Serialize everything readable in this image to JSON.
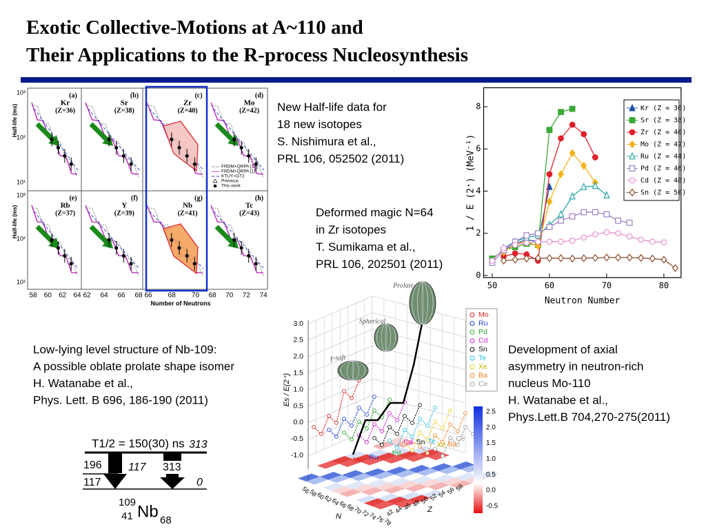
{
  "header": {
    "title_lines": [
      "Exotic Collective-Motions at A~110 and",
      "Their Applications to the R-process Nucleosynthesis"
    ]
  },
  "blocks": [
    {
      "lines": [
        "New Half-life data for",
        "18 new isotopes",
        "S. Nishimura et al.,",
        "PRL 106, 052502 (2011)"
      ]
    },
    {
      "lines": [
        "Deformed magic N=64",
        "in Zr isotopes",
        "T. Sumikama et al.,",
        "PRL 106, 202501 (2011)"
      ]
    },
    {
      "lines": [
        "Low-lying level structure of Nb-109:",
        "A possible oblate prolate shape isomer",
        "H. Watanabe et al.,",
        "Phys. Lett. B 696, 186-190 (2011)"
      ]
    },
    {
      "lines": [
        "Development of axial",
        "asymmetry in neutron-rich",
        "nucleus Mo-110",
        "H. Watanabe et al.,",
        "Phys.Lett.B 704,270-275(2011)"
      ]
    }
  ],
  "half_life": {
    "y_label": "Half-life (ms)",
    "x_label": "Number of Neutrons",
    "y_ticks": [
      "10³",
      "10²",
      "10¹"
    ],
    "panels": [
      {
        "letter": "(a)",
        "element": "Kr",
        "z": "(Z=36)"
      },
      {
        "letter": "(b)",
        "element": "Sr",
        "z": "(Z=38)"
      },
      {
        "letter": "(c)",
        "element": "Zr",
        "z": "(Z=40)"
      },
      {
        "letter": "(d)",
        "element": "Mo",
        "z": "(Z=42)"
      },
      {
        "letter": "(e)",
        "element": "Rb",
        "z": "(Z=37)"
      },
      {
        "letter": "(f)",
        "element": "Y",
        "z": "(Z=39)"
      },
      {
        "letter": "(g)",
        "element": "Nb",
        "z": "(Z=41)"
      },
      {
        "letter": "(h)",
        "element": "Tc",
        "z": "(Z=43)"
      }
    ],
    "x_ticks": [
      [
        58,
        60,
        62,
        64
      ],
      [
        62,
        64,
        66,
        68
      ],
      [
        66,
        68,
        70
      ],
      [
        68,
        70,
        72,
        74
      ]
    ],
    "legend": [
      "FRDM+QRPA [17]",
      "FRDM+QRPA [1]",
      "KTUY+GT2",
      "Previous",
      "This work"
    ]
  },
  "chart_data": {
    "type": "line",
    "x_label": "Neutron Number",
    "y_label": "1 / E (2⁺) (MeV⁻¹)",
    "xlim": [
      48.5,
      83
    ],
    "xticks": [
      50,
      60,
      70,
      80
    ],
    "ylim": [
      -0.1,
      8.9
    ],
    "yticks": [
      0,
      2,
      4,
      6,
      8
    ],
    "series": [
      {
        "name": "Kr (Z = 36)",
        "color": "#1f4fa8",
        "marker": "triangle",
        "x": [
          52,
          54,
          56,
          58,
          60
        ],
        "values": [
          1.2,
          1.5,
          1.7,
          1.6,
          4.2
        ]
      },
      {
        "name": "Sr (Z = 38)",
        "color": "#3aa935",
        "marker": "square",
        "x": [
          50,
          52,
          54,
          56,
          58,
          60,
          62,
          64
        ],
        "values": [
          0.8,
          1.2,
          1.35,
          1.5,
          1.45,
          6.9,
          7.75,
          7.9
        ]
      },
      {
        "name": "Zr (Z = 40)",
        "color": "#e0202a",
        "marker": "circle",
        "x": [
          52,
          54,
          56,
          58,
          60,
          62,
          64,
          66,
          68
        ],
        "values": [
          0.9,
          1.05,
          1.0,
          0.7,
          4.8,
          6.5,
          7.15,
          6.7,
          5.6
        ]
      },
      {
        "name": "Mo (Z = 42)",
        "color": "#f5b21b",
        "marker": "diamond",
        "x": [
          52,
          54,
          56,
          58,
          60,
          62,
          64,
          66,
          68
        ],
        "values": [
          1.1,
          1.5,
          1.6,
          1.4,
          3.5,
          4.8,
          5.8,
          5.2,
          4.4
        ]
      },
      {
        "name": "Ru (Z = 44)",
        "color": "#2aa6a6",
        "marker": "triangle-open",
        "x": [
          52,
          54,
          56,
          58,
          60,
          62,
          64,
          66,
          68,
          70
        ],
        "values": [
          1.3,
          1.6,
          1.8,
          1.9,
          2.4,
          2.9,
          3.75,
          4.2,
          4.25,
          3.8
        ]
      },
      {
        "name": "Pd (Z = 46)",
        "color": "#9b7fc2",
        "marker": "square-open",
        "x": [
          50,
          52,
          54,
          56,
          58,
          60,
          62,
          64,
          66,
          68,
          70,
          72,
          74
        ],
        "values": [
          0.6,
          1.2,
          1.6,
          1.9,
          2.0,
          2.3,
          2.6,
          2.8,
          3.0,
          3.0,
          2.9,
          2.6,
          2.5
        ]
      },
      {
        "name": "Cd (Z = 48)",
        "color": "#e88fcf",
        "marker": "circle-open",
        "x": [
          50,
          52,
          54,
          56,
          58,
          60,
          62,
          64,
          66,
          68,
          70,
          72,
          74,
          76,
          78,
          80
        ],
        "values": [
          0.7,
          1.3,
          1.45,
          1.55,
          1.6,
          1.6,
          1.6,
          1.65,
          1.8,
          1.95,
          2.05,
          2.0,
          1.85,
          1.7,
          1.6,
          1.57
        ]
      },
      {
        "name": "Sn (Z = 50)",
        "color": "#8a4a2a",
        "marker": "diamond-open",
        "x": [
          52,
          54,
          56,
          58,
          60,
          62,
          64,
          66,
          68,
          70,
          72,
          74,
          76,
          78,
          80,
          82
        ],
        "values": [
          0.7,
          0.75,
          0.8,
          0.82,
          0.82,
          0.82,
          0.8,
          0.82,
          0.83,
          0.85,
          0.85,
          0.85,
          0.83,
          0.8,
          0.75,
          0.35
        ]
      }
    ],
    "legend": "upper right"
  },
  "surface": {
    "y_label": "Es / E(2⁺)",
    "y_ticks": [
      "3.0",
      "2.5",
      "2.0",
      "1.5",
      "1.0",
      "0.5",
      "0.0",
      "-0.5",
      "-1.0"
    ],
    "shapes": [
      "Prolate",
      "Spherical",
      "γ-soft"
    ],
    "legend": [
      "Mo",
      "Ru",
      "Pd",
      "Cd",
      "Sn",
      "Te",
      "Xe",
      "Ba",
      "Ce"
    ],
    "curve_labels": [
      "Mo",
      "Ru",
      "Pd",
      "Cd",
      "Sn",
      "Te",
      "Xe",
      "Ba",
      "Ce"
    ],
    "colorbar_ticks": [
      "2.5",
      "2.0",
      "1.5",
      "1.0",
      "0.5",
      "0.0",
      "-0.5"
    ],
    "n_ticks": [
      "56",
      "58",
      "60",
      "62",
      "64",
      "66",
      "68",
      "70",
      "72",
      "74",
      "76",
      "78"
    ],
    "z_ticks": [
      "42",
      "44",
      "46",
      "48",
      "50",
      "52",
      "54",
      "56",
      "58"
    ],
    "n_label": "N",
    "z_label": "Z"
  },
  "level_scheme": {
    "half_life": "T1/2 = 150(30) ns",
    "isomer_energy": "313",
    "left_top": "196",
    "middle": "117",
    "left_bottom": "117",
    "ground": "0",
    "transition": "313",
    "mass": "109",
    "protons": "41",
    "symbol": "Nb",
    "neutrons": "68"
  }
}
